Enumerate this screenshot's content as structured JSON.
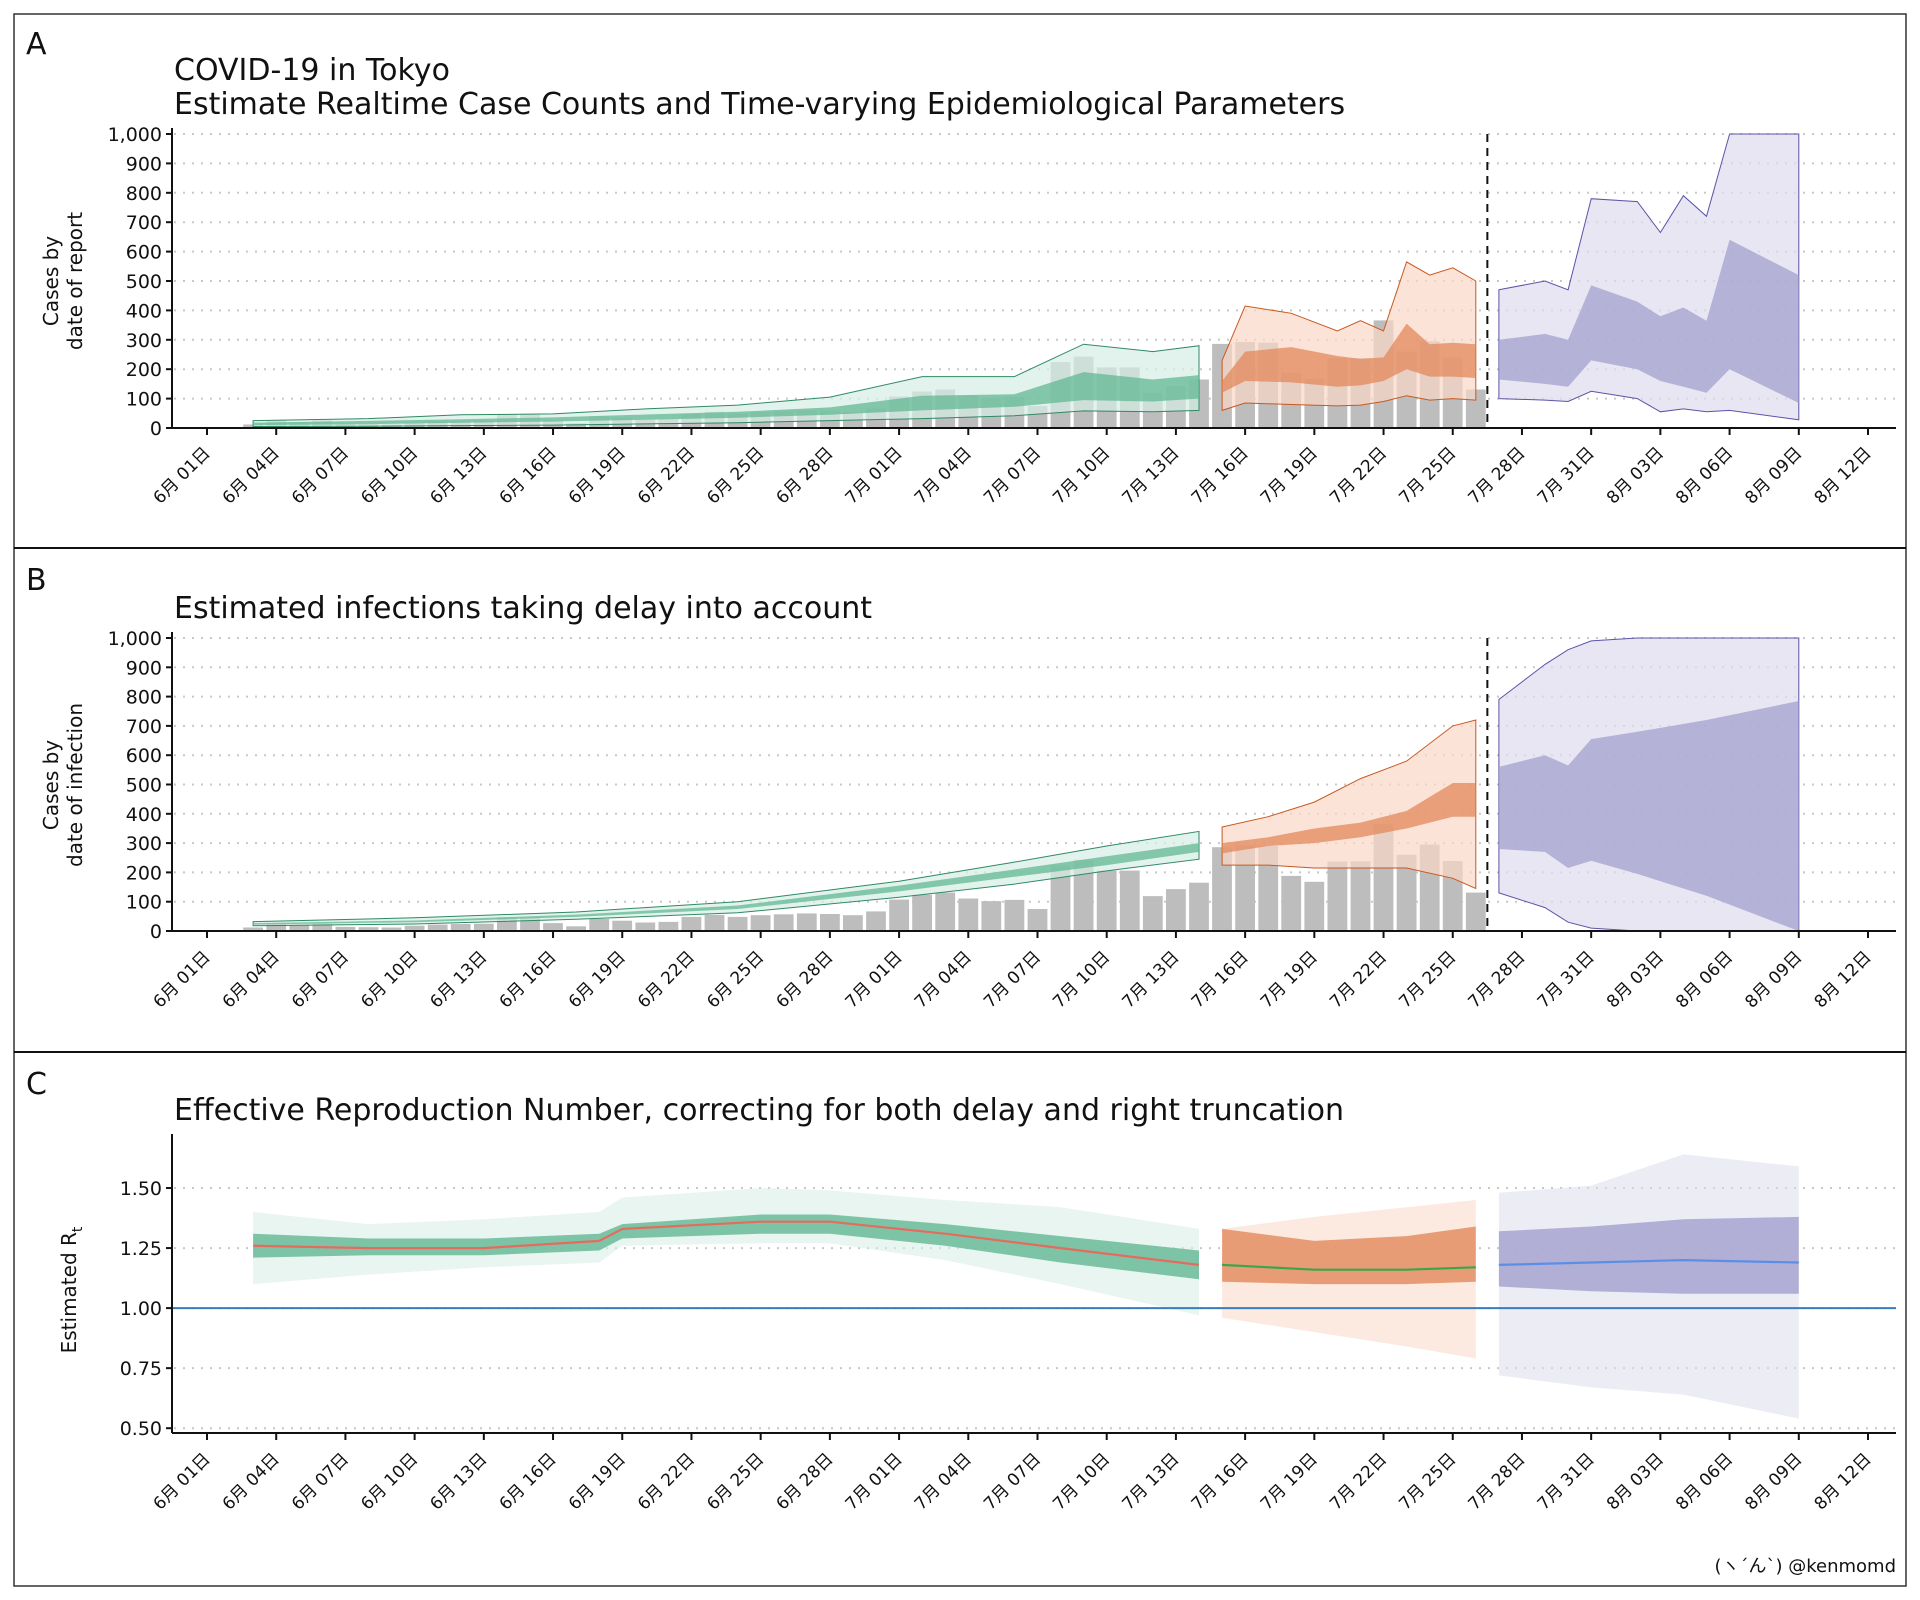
{
  "figure": {
    "panel_labels": [
      "A",
      "B",
      "C"
    ],
    "credit": "(ヽ´ん`) @kenmomd"
  },
  "date_axis": {
    "tick_labels": [
      "6月 01日",
      "6月 04日",
      "6月 07日",
      "6月 10日",
      "6月 13日",
      "6月 16日",
      "6月 19日",
      "6月 22日",
      "6月 25日",
      "6月 28日",
      "7月 01日",
      "7月 04日",
      "7月 07日",
      "7月 10日",
      "7月 13日",
      "7月 16日",
      "7月 19日",
      "7月 22日",
      "7月 25日",
      "7月 28日",
      "7月 31日",
      "8月 03日",
      "8月 06日",
      "8月 09日",
      "8月 12日"
    ],
    "start": "2020-06-01",
    "end": "2020-08-12"
  },
  "colors": {
    "green_outer": "#d5ede4",
    "green_inner": "#62b894",
    "orange_outer": "#f9d9c6",
    "orange_inner": "#e2885b",
    "purple_outer": "#dddcec",
    "purple_inner": "#a3a0cd",
    "bars": "#bdbdbd",
    "rt_reference": "#3a7dbf",
    "rt_line_green": "#e56b5f",
    "rt_line_orange": "#3aa64a",
    "rt_line_purple": "#5b8fe6"
  },
  "chart_data": [
    {
      "type": "bar",
      "panel": "A",
      "title": "COVID-19 in Tokyo",
      "subtitle": "Estimate Realtime Case Counts and Time-varying Epidemiological Parameters",
      "xlabel": "",
      "ylabel": "Cases by\ndate of report",
      "ylim": [
        0,
        1000
      ],
      "yticks": [
        "0",
        "100",
        "200",
        "300",
        "400",
        "500",
        "600",
        "700",
        "800",
        "900",
        "1,000"
      ],
      "grid": true,
      "nowcast_line": "2020-07-26",
      "bars": {
        "x": [
          "2020-06-03",
          "2020-06-04",
          "2020-06-05",
          "2020-06-06",
          "2020-06-07",
          "2020-06-08",
          "2020-06-09",
          "2020-06-10",
          "2020-06-11",
          "2020-06-12",
          "2020-06-13",
          "2020-06-14",
          "2020-06-15",
          "2020-06-16",
          "2020-06-17",
          "2020-06-18",
          "2020-06-19",
          "2020-06-20",
          "2020-06-21",
          "2020-06-22",
          "2020-06-23",
          "2020-06-24",
          "2020-06-25",
          "2020-06-26",
          "2020-06-27",
          "2020-06-28",
          "2020-06-29",
          "2020-06-30",
          "2020-07-01",
          "2020-07-02",
          "2020-07-03",
          "2020-07-04",
          "2020-07-05",
          "2020-07-06",
          "2020-07-07",
          "2020-07-08",
          "2020-07-09",
          "2020-07-10",
          "2020-07-11",
          "2020-07-12",
          "2020-07-13",
          "2020-07-14",
          "2020-07-15",
          "2020-07-16",
          "2020-07-17",
          "2020-07-18",
          "2020-07-19",
          "2020-07-20",
          "2020-07-21",
          "2020-07-22",
          "2020-07-23",
          "2020-07-24",
          "2020-07-25",
          "2020-07-26"
        ],
        "values": [
          12,
          26,
          20,
          26,
          14,
          13,
          12,
          18,
          22,
          24,
          25,
          47,
          48,
          27,
          16,
          41,
          35,
          29,
          31,
          48,
          55,
          48,
          54,
          57,
          60,
          58,
          54,
          67,
          107,
          124,
          131,
          111,
          102,
          106,
          75,
          224,
          243,
          206,
          206,
          119,
          143,
          165,
          286,
          293,
          290,
          188,
          168,
          237,
          238,
          366,
          260,
          295,
          239,
          131
        ]
      },
      "series": [
        {
          "name": "",
          "estimate_type": "estimate",
          "x": [
            "2020-06-03",
            "2020-06-08",
            "2020-06-12",
            "2020-06-16",
            "2020-06-20",
            "2020-06-24",
            "2020-06-28",
            "2020-07-02",
            "2020-07-06",
            "2020-07-09",
            "2020-07-12",
            "2020-07-14"
          ],
          "lower90": [
            5,
            6,
            8,
            10,
            14,
            18,
            25,
            32,
            42,
            58,
            55,
            60
          ],
          "lower50": [
            10,
            13,
            18,
            22,
            28,
            35,
            45,
            60,
            72,
            95,
            90,
            100
          ],
          "upper50": [
            18,
            24,
            30,
            36,
            46,
            55,
            70,
            110,
            115,
            190,
            165,
            180
          ],
          "upper90": [
            25,
            32,
            45,
            48,
            65,
            78,
            105,
            175,
            175,
            285,
            260,
            280
          ]
        },
        {
          "name": "",
          "estimate_type": "estimate based on partial data",
          "x": [
            "2020-07-15",
            "2020-07-16",
            "2020-07-18",
            "2020-07-20",
            "2020-07-21",
            "2020-07-22",
            "2020-07-23",
            "2020-07-24",
            "2020-07-25",
            "2020-07-26"
          ],
          "lower90": [
            60,
            85,
            80,
            75,
            78,
            90,
            110,
            95,
            100,
            95
          ],
          "lower50": [
            120,
            160,
            155,
            140,
            145,
            160,
            200,
            175,
            175,
            170
          ],
          "upper50": [
            160,
            260,
            275,
            245,
            235,
            240,
            355,
            285,
            290,
            285
          ],
          "upper90": [
            230,
            415,
            390,
            330,
            365,
            330,
            565,
            520,
            545,
            500
          ]
        },
        {
          "name": "",
          "estimate_type": "forecast",
          "x": [
            "2020-07-27",
            "2020-07-29",
            "2020-07-30",
            "2020-07-31",
            "2020-08-02",
            "2020-08-03",
            "2020-08-04",
            "2020-08-05",
            "2020-08-06",
            "2020-08-09"
          ],
          "lower90": [
            100,
            95,
            90,
            125,
            100,
            55,
            65,
            55,
            60,
            28
          ],
          "lower50": [
            165,
            150,
            140,
            230,
            200,
            160,
            140,
            120,
            200,
            85
          ],
          "upper50": [
            300,
            320,
            300,
            485,
            430,
            380,
            410,
            365,
            640,
            520
          ],
          "upper90": [
            470,
            500,
            470,
            780,
            770,
            665,
            790,
            720,
            1000,
            1000
          ]
        }
      ]
    },
    {
      "type": "bar",
      "panel": "B",
      "title": "Estimated infections taking delay into account",
      "xlabel": "",
      "ylabel": "Cases by\ndate of infection",
      "ylim": [
        0,
        1000
      ],
      "yticks": [
        "0",
        "100",
        "200",
        "300",
        "400",
        "500",
        "600",
        "700",
        "800",
        "900",
        "1,000"
      ],
      "grid": true,
      "nowcast_line": "2020-07-26",
      "bars": {
        "x": [
          "2020-06-03",
          "2020-06-04",
          "2020-06-05",
          "2020-06-06",
          "2020-06-07",
          "2020-06-08",
          "2020-06-09",
          "2020-06-10",
          "2020-06-11",
          "2020-06-12",
          "2020-06-13",
          "2020-06-14",
          "2020-06-15",
          "2020-06-16",
          "2020-06-17",
          "2020-06-18",
          "2020-06-19",
          "2020-06-20",
          "2020-06-21",
          "2020-06-22",
          "2020-06-23",
          "2020-06-24",
          "2020-06-25",
          "2020-06-26",
          "2020-06-27",
          "2020-06-28",
          "2020-06-29",
          "2020-06-30",
          "2020-07-01",
          "2020-07-02",
          "2020-07-03",
          "2020-07-04",
          "2020-07-05",
          "2020-07-06",
          "2020-07-07",
          "2020-07-08",
          "2020-07-09",
          "2020-07-10",
          "2020-07-11",
          "2020-07-12",
          "2020-07-13",
          "2020-07-14",
          "2020-07-15",
          "2020-07-16",
          "2020-07-17",
          "2020-07-18",
          "2020-07-19",
          "2020-07-20",
          "2020-07-21",
          "2020-07-22",
          "2020-07-23",
          "2020-07-24",
          "2020-07-25",
          "2020-07-26"
        ],
        "values": [
          12,
          26,
          20,
          26,
          14,
          13,
          12,
          18,
          22,
          24,
          25,
          47,
          48,
          27,
          16,
          41,
          35,
          29,
          31,
          48,
          55,
          48,
          54,
          57,
          60,
          58,
          54,
          67,
          107,
          124,
          131,
          111,
          102,
          106,
          75,
          224,
          243,
          206,
          206,
          119,
          143,
          165,
          286,
          293,
          290,
          188,
          168,
          237,
          238,
          366,
          260,
          295,
          239,
          131
        ]
      },
      "series": [
        {
          "name": "",
          "estimate_type": "estimate",
          "x": [
            "2020-06-03",
            "2020-06-10",
            "2020-06-17",
            "2020-06-24",
            "2020-07-01",
            "2020-07-06",
            "2020-07-10",
            "2020-07-14"
          ],
          "lower90": [
            18,
            24,
            40,
            62,
            115,
            160,
            205,
            245
          ],
          "lower50": [
            22,
            30,
            48,
            75,
            135,
            185,
            225,
            270
          ],
          "upper50": [
            27,
            36,
            56,
            87,
            155,
            210,
            255,
            300
          ],
          "upper90": [
            32,
            45,
            65,
            100,
            170,
            235,
            290,
            340
          ]
        },
        {
          "name": "",
          "estimate_type": "estimate based on partial data",
          "x": [
            "2020-07-15",
            "2020-07-17",
            "2020-07-19",
            "2020-07-21",
            "2020-07-23",
            "2020-07-25",
            "2020-07-26"
          ],
          "lower90": [
            225,
            225,
            215,
            215,
            215,
            180,
            145
          ],
          "lower50": [
            265,
            290,
            300,
            320,
            350,
            390,
            390
          ],
          "upper50": [
            300,
            320,
            350,
            370,
            410,
            505,
            505
          ],
          "upper90": [
            355,
            390,
            440,
            520,
            580,
            700,
            720
          ]
        },
        {
          "name": "",
          "estimate_type": "forecast",
          "x": [
            "2020-07-27",
            "2020-07-29",
            "2020-07-30",
            "2020-07-31",
            "2020-08-02",
            "2020-08-05",
            "2020-08-09"
          ],
          "lower90": [
            130,
            80,
            30,
            10,
            0,
            0,
            0
          ],
          "lower50": [
            280,
            270,
            215,
            240,
            195,
            120,
            0
          ],
          "upper50": [
            560,
            600,
            565,
            655,
            680,
            720,
            785
          ],
          "upper90": [
            790,
            910,
            960,
            990,
            1000,
            1000,
            1000
          ]
        }
      ]
    },
    {
      "type": "line",
      "panel": "C",
      "title": "Effective Reproduction Number, correcting for both delay and right truncation",
      "xlabel": "",
      "ylabel": "Estimated R_t",
      "ylim": [
        0.48,
        1.7
      ],
      "yticks": [
        "0.50",
        "0.75",
        "1.00",
        "1.25",
        "1.50"
      ],
      "grid": true,
      "reference_line": 1.0,
      "series": [
        {
          "name": "",
          "estimate_type": "estimate",
          "x": [
            "2020-06-03",
            "2020-06-08",
            "2020-06-13",
            "2020-06-18",
            "2020-06-19",
            "2020-06-25",
            "2020-06-28",
            "2020-07-03",
            "2020-07-08",
            "2020-07-14"
          ],
          "median": [
            1.26,
            1.25,
            1.25,
            1.28,
            1.33,
            1.36,
            1.36,
            1.31,
            1.25,
            1.18
          ],
          "lower90": [
            1.1,
            1.14,
            1.17,
            1.19,
            1.26,
            1.27,
            1.27,
            1.2,
            1.1,
            0.97
          ],
          "lower50": [
            1.21,
            1.22,
            1.22,
            1.24,
            1.29,
            1.31,
            1.31,
            1.26,
            1.19,
            1.12
          ],
          "upper50": [
            1.31,
            1.29,
            1.29,
            1.31,
            1.35,
            1.39,
            1.39,
            1.35,
            1.3,
            1.24
          ],
          "upper90": [
            1.4,
            1.35,
            1.37,
            1.4,
            1.46,
            1.5,
            1.49,
            1.45,
            1.42,
            1.33
          ]
        },
        {
          "name": "",
          "estimate_type": "estimate based on partial data",
          "x": [
            "2020-07-15",
            "2020-07-19",
            "2020-07-23",
            "2020-07-26"
          ],
          "median": [
            1.18,
            1.16,
            1.16,
            1.17
          ],
          "lower90": [
            0.96,
            0.9,
            0.84,
            0.79
          ],
          "lower50": [
            1.11,
            1.1,
            1.1,
            1.11
          ],
          "upper50": [
            1.33,
            1.28,
            1.3,
            1.34
          ],
          "upper90": [
            1.33,
            1.38,
            1.42,
            1.45
          ]
        },
        {
          "name": "",
          "estimate_type": "forecast",
          "x": [
            "2020-07-27",
            "2020-07-31",
            "2020-08-04",
            "2020-08-09"
          ],
          "median": [
            1.18,
            1.19,
            1.2,
            1.19
          ],
          "lower90": [
            0.72,
            0.67,
            0.64,
            0.54
          ],
          "lower50": [
            1.09,
            1.07,
            1.06,
            1.06
          ],
          "upper50": [
            1.32,
            1.34,
            1.37,
            1.38
          ],
          "upper90": [
            1.48,
            1.51,
            1.64,
            1.59
          ]
        }
      ]
    }
  ]
}
